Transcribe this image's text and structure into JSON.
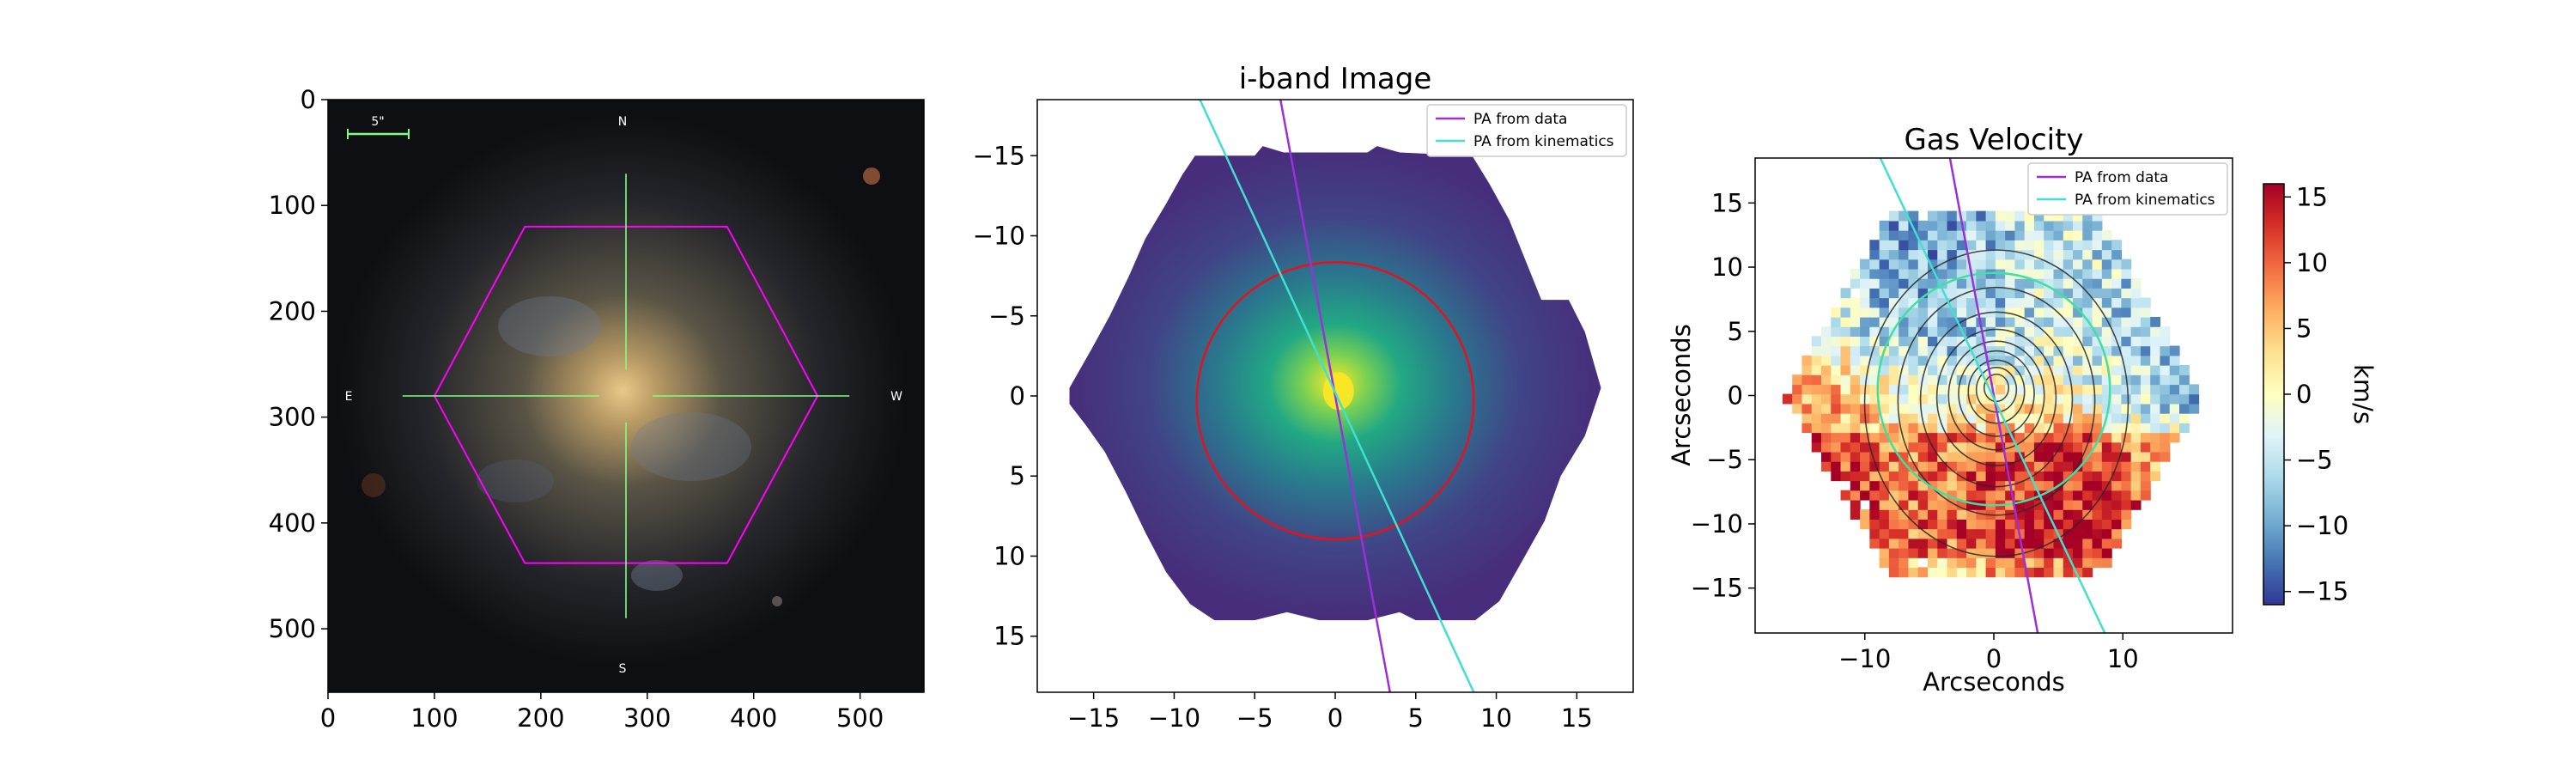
{
  "chart_data": [
    {
      "type": "image",
      "title": "",
      "xlim": [
        0,
        560
      ],
      "ylim": [
        560,
        0
      ],
      "xticks": [
        "0",
        "100",
        "200",
        "300",
        "400",
        "500"
      ],
      "yticks": [
        "0",
        "100",
        "200",
        "300",
        "400",
        "500"
      ],
      "scale_bar_label": "5\"",
      "compass": {
        "north": "N",
        "south": "S",
        "east": "E",
        "west": "W"
      },
      "hexagon": [
        [
          100,
          280
        ],
        [
          185,
          120
        ],
        [
          375,
          120
        ],
        [
          460,
          280
        ],
        [
          375,
          438
        ],
        [
          185,
          438
        ]
      ],
      "center": [
        280,
        280
      ],
      "colors": {
        "hexagon": "#ff00ff",
        "crosshair": "#7fff7f"
      }
    },
    {
      "type": "heatmap",
      "title": "i-band Image",
      "xlim": [
        -18.5,
        18.5
      ],
      "ylim": [
        -18.5,
        18.5
      ],
      "xticks": [
        "−15",
        "−10",
        "−5",
        "0",
        "5",
        "10",
        "15"
      ],
      "yticks": [
        "−15",
        "−10",
        "−5",
        "0",
        "5",
        "10",
        "15"
      ],
      "lines": [
        {
          "name": "PA from data",
          "color": "#9b30d9",
          "points": [
            [
              -3.4,
              -18.5
            ],
            [
              3.4,
              18.5
            ]
          ]
        },
        {
          "name": "PA from kinematics",
          "color": "#40e0d0",
          "points": [
            [
              -8.4,
              -18.5
            ],
            [
              8.6,
              18.5
            ]
          ]
        }
      ],
      "circle": {
        "center": [
          0,
          0.3
        ],
        "radius": 8.6,
        "color": "#e8111b"
      },
      "legend": {
        "position": "top-right",
        "entries": [
          "PA from data",
          "PA from kinematics"
        ]
      },
      "colors": {
        "background": "#440154",
        "peak": "#fde725"
      }
    },
    {
      "type": "heatmap",
      "title": "Gas Velocity",
      "xlabel": "Arcseconds",
      "ylabel": "Arcseconds",
      "xlim": [
        -18.5,
        18.5
      ],
      "ylim": [
        -18.5,
        18.5
      ],
      "xticks": [
        "−10",
        "0",
        "10"
      ],
      "yticks": [
        "15",
        "10",
        "5",
        "0",
        "−5",
        "−10",
        "−15"
      ],
      "lines": [
        {
          "name": "PA from data",
          "color": "#9b30d9",
          "points": [
            [
              -3.4,
              18.5
            ],
            [
              3.4,
              -18.5
            ]
          ]
        },
        {
          "name": "PA from kinematics",
          "color": "#40e0d0",
          "points": [
            [
              -8.8,
              18.5
            ],
            [
              8.6,
              -18.5
            ]
          ]
        }
      ],
      "circle": {
        "center": [
          0,
          0.5
        ],
        "radius": 9.0,
        "color": "#3fe0a0"
      },
      "contour_radii": [
        1.0,
        1.6,
        2.2,
        2.9,
        3.6,
        4.4,
        5.5,
        7.0,
        9.2
      ],
      "legend": {
        "position": "top-right",
        "entries": [
          "PA from data",
          "PA from kinematics"
        ]
      },
      "colorbar": {
        "label": "km/s",
        "min": -16,
        "max": 16,
        "ticks": [
          "15",
          "10",
          "5",
          "0",
          "−5",
          "−10",
          "−15"
        ],
        "cmap": "RdYlBu_r"
      }
    }
  ]
}
